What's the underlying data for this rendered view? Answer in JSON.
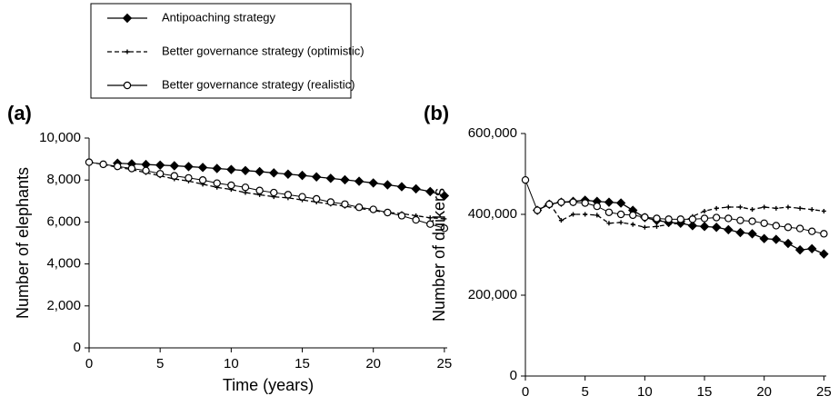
{
  "chart_data": [
    {
      "type": "line",
      "title": "(a)",
      "x_label": "Time (years)",
      "y_label": "Number of elephants",
      "x": [
        0,
        1,
        2,
        3,
        4,
        5,
        6,
        7,
        8,
        9,
        10,
        11,
        12,
        13,
        14,
        15,
        16,
        17,
        18,
        19,
        20,
        21,
        22,
        23,
        24,
        25
      ],
      "xlim": [
        0,
        25.2
      ],
      "xticks": [
        0,
        5,
        10,
        15,
        20,
        25
      ],
      "ylim": [
        0,
        10000
      ],
      "yticks": [
        0,
        {
          "value": 2000,
          "label": "2,000"
        },
        {
          "value": 4000,
          "label": "4,000"
        },
        {
          "value": 6000,
          "label": "6,000"
        },
        {
          "value": 8000,
          "label": "8,000"
        },
        {
          "value": 10000,
          "label": "10,000"
        }
      ],
      "grid": false,
      "series": [
        {
          "name": "Antipoaching strategy",
          "color": "#000000",
          "marker": "diamond",
          "dash": "solid",
          "values": [
            null,
            null,
            8800,
            8770,
            8740,
            8710,
            8680,
            8640,
            8600,
            8550,
            8500,
            8450,
            8400,
            8340,
            8280,
            8220,
            8150,
            8080,
            8010,
            7940,
            7860,
            7770,
            7680,
            7580,
            7450,
            7250
          ]
        },
        {
          "name": "Better governance strategy (optimistic)",
          "color": "#000000",
          "marker": "plus",
          "dash": "dashed",
          "values": [
            8850,
            8750,
            8600,
            8500,
            8350,
            8200,
            8050,
            7950,
            7800,
            7650,
            7550,
            7400,
            7300,
            7200,
            7150,
            7050,
            6950,
            6850,
            6750,
            6650,
            6550,
            6450,
            6400,
            6300,
            6200,
            6150
          ]
        },
        {
          "name": "Better governance strategy (realistic)",
          "color": "#000000",
          "marker": "circle",
          "dash": "solid",
          "values": [
            8850,
            8750,
            8650,
            8550,
            8450,
            8300,
            8200,
            8100,
            8000,
            7850,
            7750,
            7650,
            7500,
            7400,
            7300,
            7200,
            7100,
            6950,
            6850,
            6700,
            6600,
            6450,
            6300,
            6100,
            5900,
            5700
          ]
        }
      ]
    },
    {
      "type": "line",
      "title": "(b)",
      "x_label": "Time (years)",
      "y_label": "Number of duikers",
      "x": [
        0,
        1,
        2,
        3,
        4,
        5,
        6,
        7,
        8,
        9,
        10,
        11,
        12,
        13,
        14,
        15,
        16,
        17,
        18,
        19,
        20,
        21,
        22,
        23,
        24,
        25
      ],
      "xlim": [
        0,
        25.2
      ],
      "xticks": [
        0,
        5,
        10,
        15,
        20,
        25
      ],
      "ylim": [
        0,
        600000
      ],
      "yticks": [
        0,
        {
          "value": 200000,
          "label": "200,000"
        },
        {
          "value": 400000,
          "label": "400,000"
        },
        {
          "value": 600000,
          "label": "600,000"
        }
      ],
      "grid": false,
      "series": [
        {
          "name": "Antipoaching strategy",
          "color": "#000000",
          "marker": "diamond",
          "dash": "solid",
          "values": [
            null,
            410000,
            425000,
            430000,
            432000,
            435000,
            432000,
            430000,
            428000,
            410000,
            392000,
            385000,
            380000,
            378000,
            372000,
            370000,
            368000,
            362000,
            355000,
            352000,
            340000,
            338000,
            328000,
            312000,
            315000,
            302000
          ]
        },
        {
          "name": "Better governance strategy (optimistic)",
          "color": "#000000",
          "marker": "plus",
          "dash": "dashed",
          "values": [
            null,
            410000,
            428000,
            385000,
            400000,
            400000,
            398000,
            378000,
            380000,
            375000,
            368000,
            370000,
            375000,
            378000,
            395000,
            408000,
            415000,
            418000,
            418000,
            412000,
            418000,
            415000,
            418000,
            415000,
            412000,
            408000
          ]
        },
        {
          "name": "Better governance strategy (realistic)",
          "color": "#000000",
          "marker": "circle",
          "dash": "solid",
          "values": [
            485000,
            410000,
            425000,
            430000,
            430000,
            428000,
            420000,
            405000,
            400000,
            398000,
            393000,
            390000,
            388000,
            388000,
            388000,
            390000,
            392000,
            390000,
            385000,
            383000,
            378000,
            372000,
            368000,
            365000,
            358000,
            352000
          ]
        }
      ]
    }
  ]
}
